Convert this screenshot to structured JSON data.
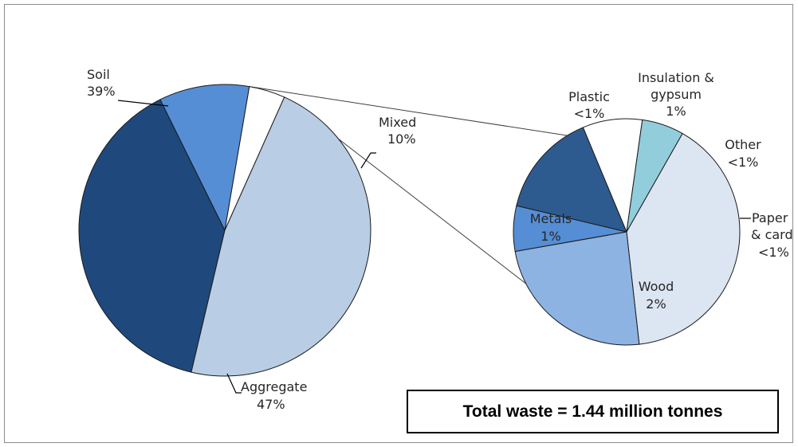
{
  "chart_data": [
    {
      "type": "pie",
      "slices": [
        {
          "label": "Soil",
          "value_label": "39%",
          "value": 39,
          "color": "#1f497d"
        },
        {
          "label": "Mixed",
          "value_label": "10%",
          "value": 10,
          "color": "#558ed5"
        },
        {
          "label": "",
          "value_label": "",
          "value": 4,
          "color": "#ffffff"
        },
        {
          "label": "Aggregate",
          "value_label": "47%",
          "value": 47,
          "color": "#b9cde5"
        }
      ]
    },
    {
      "type": "pie",
      "slices": [
        {
          "label": "Plastic",
          "value_label": "<1%",
          "value": 0.26,
          "color": "#558ed5"
        },
        {
          "label": "Insulation & gypsum",
          "value_label": "1%",
          "value": 0.6,
          "color": "#2e5b8f"
        },
        {
          "label": "Other",
          "value_label": "<1%",
          "value": 0.34,
          "color": "#ffffff"
        },
        {
          "label": "Paper & card",
          "value_label": "<1%",
          "value": 0.24,
          "color": "#92cddc"
        },
        {
          "label": "Wood",
          "value_label": "2%",
          "value": 1.6,
          "color": "#dce6f2"
        },
        {
          "label": "Metals",
          "value_label": "1%",
          "value": 0.96,
          "color": "#8db3e2"
        }
      ]
    }
  ],
  "annotation": {
    "total": "Total waste = 1.44 million tonnes"
  }
}
